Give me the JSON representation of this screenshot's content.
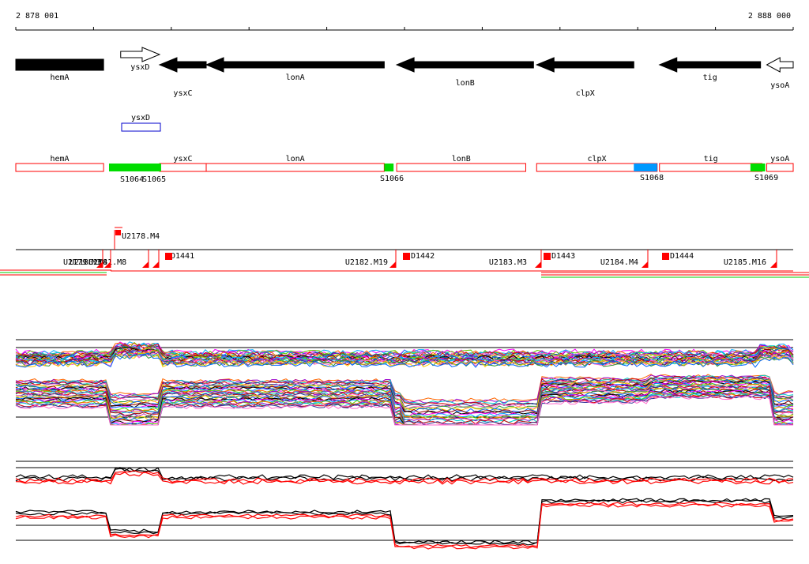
{
  "ruler": {
    "start_label": "2 878 001",
    "end_label": "2 888 000"
  },
  "genes": [
    {
      "name": "hemA",
      "strand": "+",
      "start": 2878001,
      "end": 2879130
    },
    {
      "name": "ysxD",
      "strand": "+",
      "start": 2879350,
      "end": 2879850
    },
    {
      "name": "ysxC",
      "strand": "-",
      "start": 2879850,
      "end": 2880450
    },
    {
      "name": "lonA",
      "strand": "-",
      "start": 2880450,
      "end": 2882740
    },
    {
      "name": "lonB",
      "strand": "-",
      "start": 2882900,
      "end": 2884660
    },
    {
      "name": "clpX",
      "strand": "-",
      "start": 2884700,
      "end": 2885950
    },
    {
      "name": "tig",
      "strand": "-",
      "start": 2886280,
      "end": 2887580
    },
    {
      "name": "ysoA",
      "strand": "-",
      "start": 2887660,
      "end": 2888000
    }
  ],
  "separate_gene": {
    "name": "ysxD",
    "start": 2879350,
    "end": 2879850
  },
  "segments": [
    {
      "name": "hemA",
      "start": 2878001,
      "end": 2879130
    },
    {
      "name": "ysxC",
      "start": 2879850,
      "end": 2880450
    },
    {
      "name": "lonA",
      "start": 2880450,
      "end": 2882740
    },
    {
      "name": "lonB",
      "start": 2882900,
      "end": 2884560
    },
    {
      "name": "clpX",
      "start": 2884700,
      "end": 2886250
    },
    {
      "name": "tig",
      "start": 2886280,
      "end": 2887600
    },
    {
      "name": "ysoA",
      "start": 2887660,
      "end": 2888000
    }
  ],
  "features": [
    {
      "name": "S1064",
      "start": 2879200,
      "end": 2879850,
      "color": "#00dd00"
    },
    {
      "name": "S1065",
      "start": 2879850,
      "end": 2879860,
      "color": "#00dd00"
    },
    {
      "name": "S1066",
      "start": 2882740,
      "end": 2882860,
      "color": "#00dd00"
    },
    {
      "name": "S1068",
      "start": 2885950,
      "end": 2886250,
      "color": "#0099ff"
    },
    {
      "name": "S1069",
      "start": 2887450,
      "end": 2887640,
      "color": "#00dd00"
    }
  ],
  "transcripts": {
    "top_label": "U2178.M4",
    "labels": [
      "U2179.M3",
      "U2180.M4",
      "U2181.M8",
      "D1441",
      "U2182.M19",
      "D1442",
      "U2183.M3",
      "D1443",
      "U2184.M4",
      "D1444",
      "U2185.M16"
    ]
  },
  "colors": {
    "gene": "#000000",
    "segment_outline": "#ff0000",
    "separate_gene_outline": "#0000cc",
    "feature_green": "#00dd00",
    "feature_blue": "#0099ff",
    "marker": "#ff0000"
  }
}
